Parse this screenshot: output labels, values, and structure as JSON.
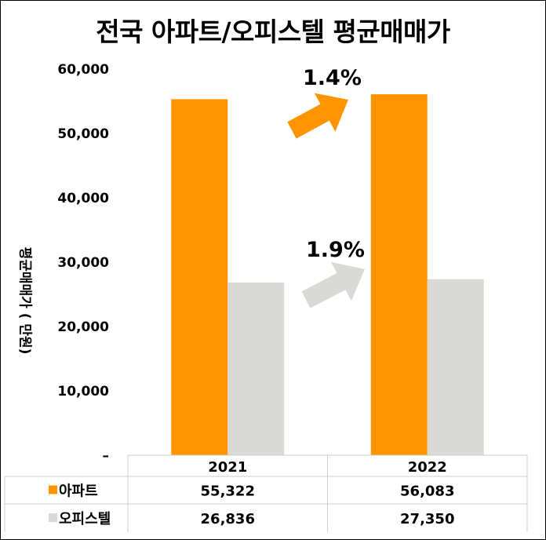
{
  "chart_data": {
    "type": "bar",
    "title": "전국 아파트/오피스텔  평균매매가",
    "ylabel": "평균매매가 ( 만원)",
    "categories": [
      "2021",
      "2022"
    ],
    "series": [
      {
        "name": "아파트",
        "values": [
          55322,
          56083
        ],
        "color": "#FF9400"
      },
      {
        "name": "오피스텔",
        "values": [
          26836,
          27350
        ],
        "color": "#D9D9D6"
      }
    ],
    "ylim": [
      0,
      60000
    ],
    "yticks": [
      "–",
      "10,000",
      "20,000",
      "30,000",
      "40,000",
      "50,000",
      "60,000"
    ],
    "table_values": [
      [
        "55,322",
        "56,083"
      ],
      [
        "26,836",
        "27,350"
      ]
    ],
    "annotations": [
      {
        "text": "1.4%",
        "series": "아파트",
        "color": "#FF9400"
      },
      {
        "text": "1.9%",
        "series": "오피스텔",
        "color": "#D9D9D6"
      }
    ],
    "grid": false,
    "legend": "data-table"
  }
}
